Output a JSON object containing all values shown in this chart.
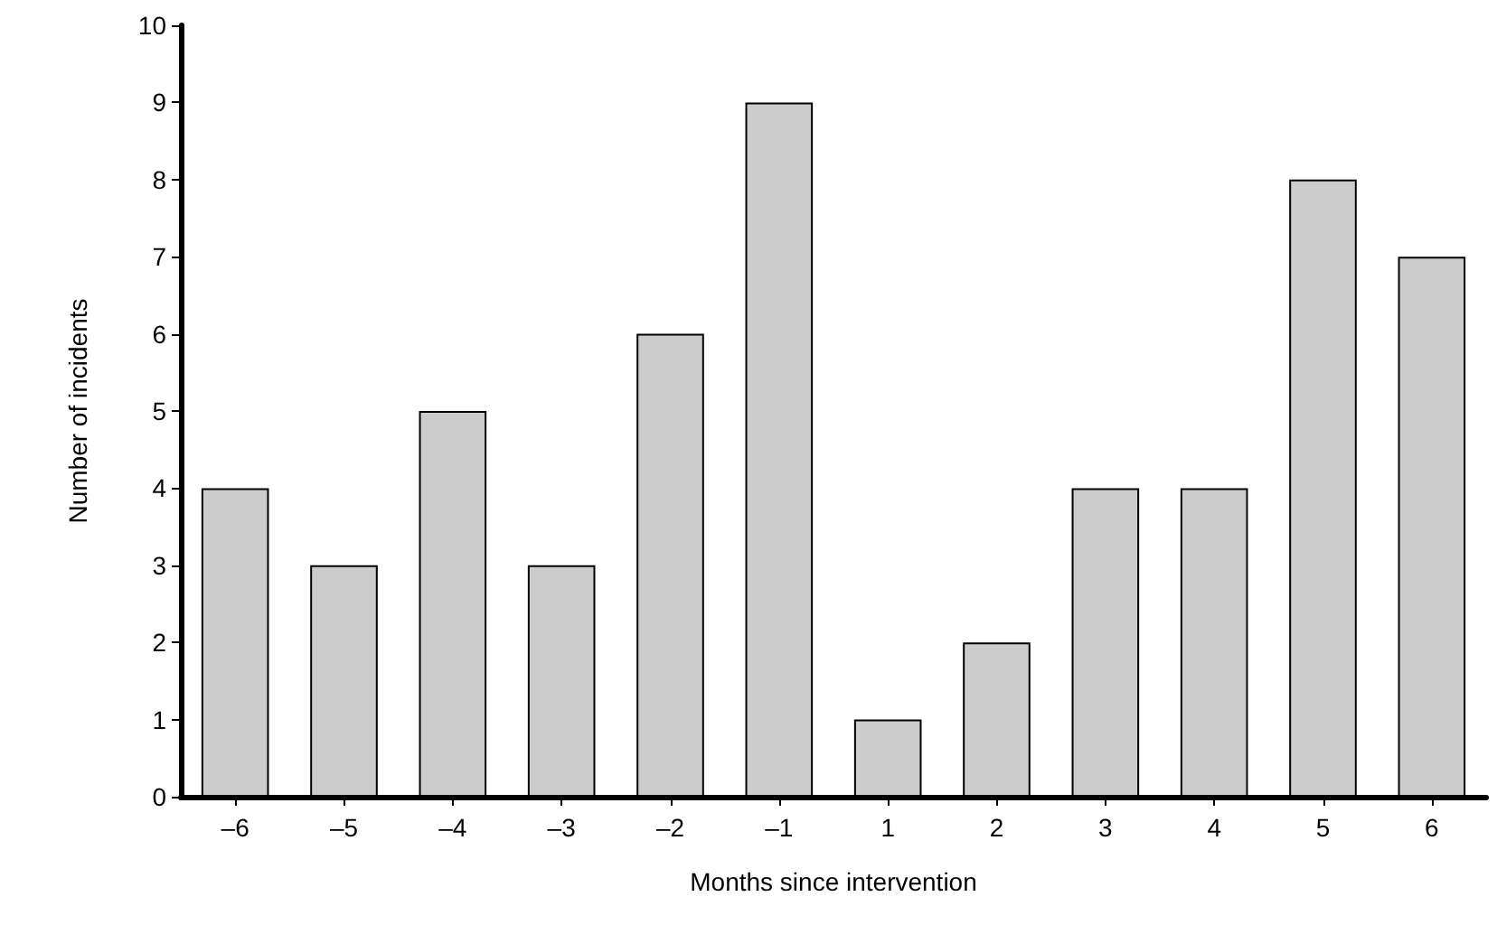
{
  "chart_data": {
    "type": "bar",
    "xlabel": "Months since intervention",
    "ylabel": "Number of incidents",
    "categories": [
      "–6",
      "–5",
      "–4",
      "–3",
      "–2",
      "–1",
      "1",
      "2",
      "3",
      "4",
      "5",
      "6"
    ],
    "values": [
      4,
      3,
      5,
      3,
      6,
      9,
      1,
      2,
      4,
      4,
      8,
      7
    ],
    "color": "#cccccc",
    "ylim": [
      0,
      10
    ],
    "yticks": [
      0,
      1,
      2,
      3,
      4,
      5,
      6,
      7,
      8,
      9,
      10
    ],
    "grid": false
  }
}
